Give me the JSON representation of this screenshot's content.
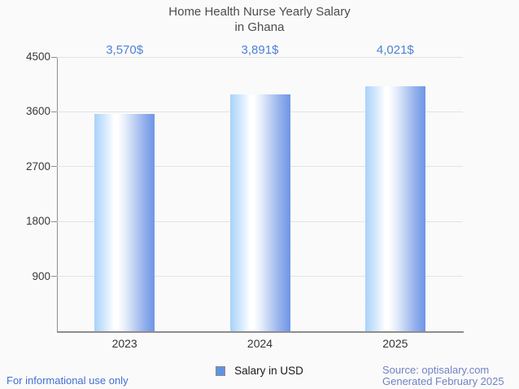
{
  "title": {
    "line1": "Home Health Nurse Yearly Salary",
    "line2": "in Ghana"
  },
  "chart_data": {
    "type": "bar",
    "title": "Home Health Nurse Yearly Salary in Ghana",
    "categories": [
      "2023",
      "2024",
      "2025"
    ],
    "series": [
      {
        "name": "Salary in USD",
        "values": [
          3570,
          3891,
          4021
        ],
        "value_labels": [
          "3,570$",
          "3,891$",
          "4,021$"
        ]
      }
    ],
    "xlabel": "",
    "ylabel": "",
    "ylim": [
      0,
      4500
    ],
    "yticks": [
      900,
      1800,
      2700,
      3600,
      4500
    ],
    "grid": true,
    "legend_position": "bottom",
    "bar_gradient": [
      "#a9d2f9",
      "#ffffff",
      "#6e96e6"
    ],
    "value_label_color": "#4f82d5"
  },
  "legend": {
    "label": "Salary in USD",
    "marker_color": "#5f93e2"
  },
  "footer": {
    "disclaimer": "For informational use only",
    "source_line1": "Source: optisalary.com",
    "source_line2": "Generated February 2025",
    "disclaimer_color": "#4170d2",
    "source_color": "#7282c5"
  },
  "colors": {
    "background": "#fafafa",
    "title_text": "#4d4d4d",
    "axis_line": "#8d8d8d",
    "gridline": "#e3e3e3",
    "tick_label": "#383838"
  }
}
